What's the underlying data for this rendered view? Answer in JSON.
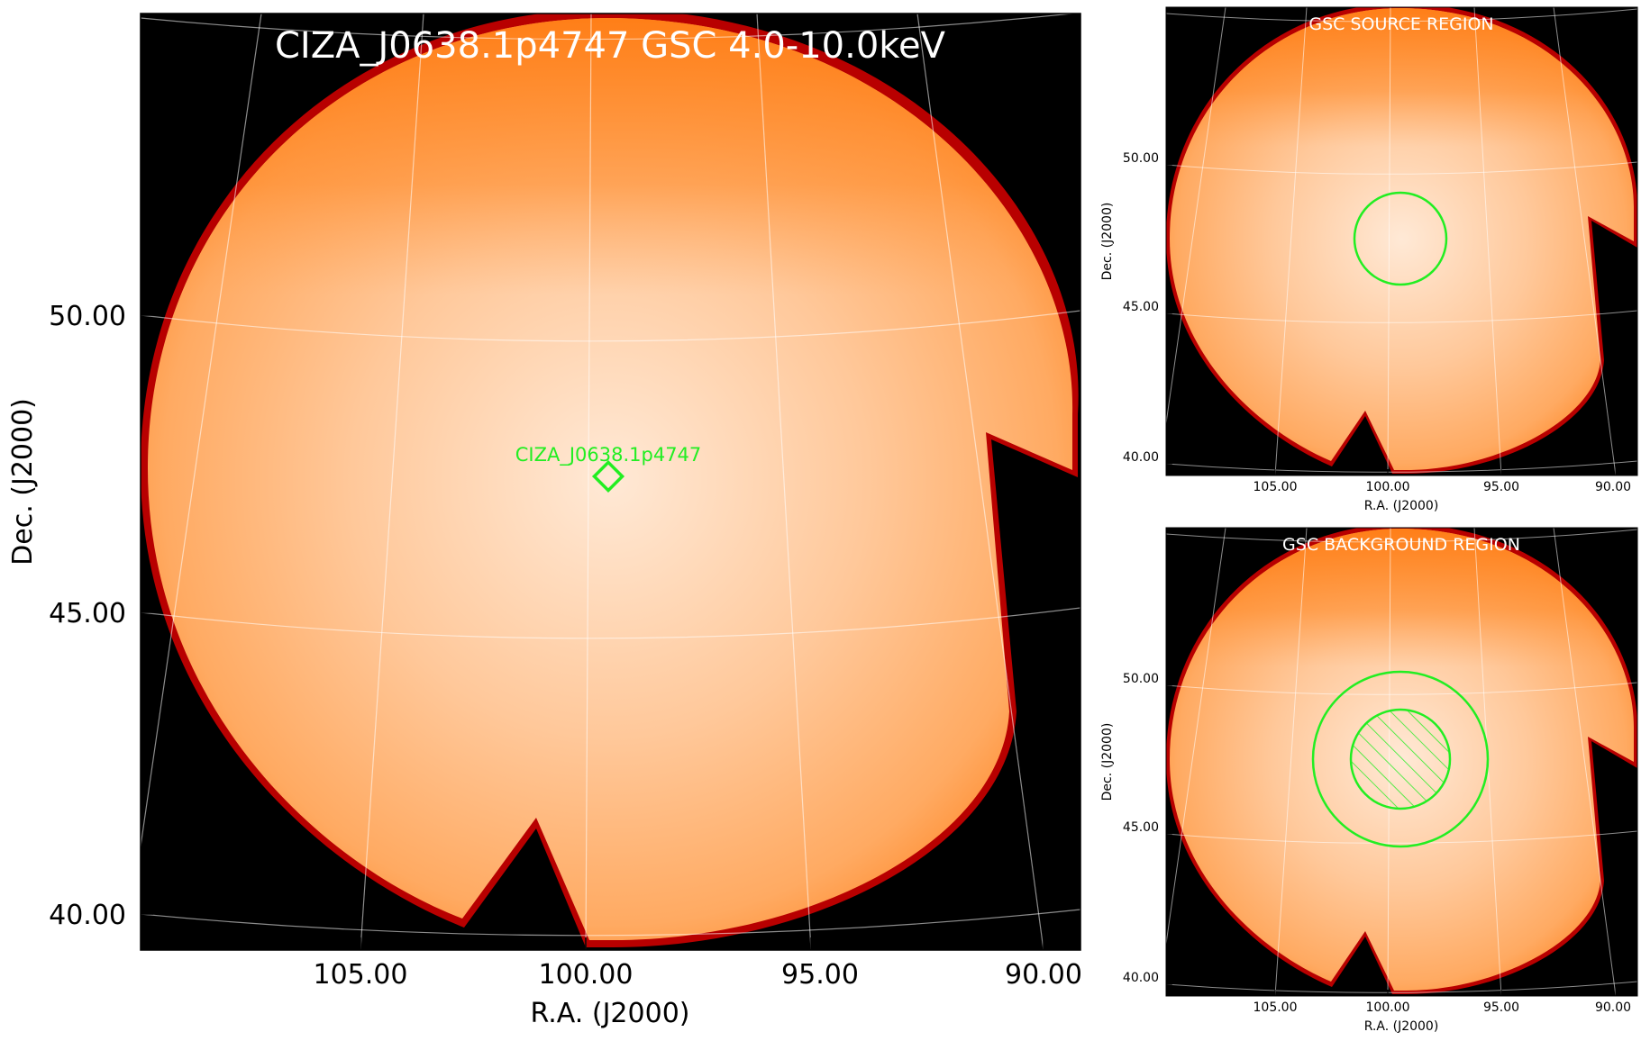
{
  "main_panel": {
    "title": "CIZA_J0638.1p4747 GSC 4.0-10.0keV",
    "source_label": "CIZA_J0638.1p4747",
    "xlabel": "R.A. (J2000)",
    "ylabel": "Dec. (J2000)",
    "x_ticks": [
      "105.00",
      "100.00",
      "95.00",
      "90.00"
    ],
    "y_ticks": [
      "50.00",
      "45.00",
      "40.00"
    ]
  },
  "source_panel": {
    "title": "GSC SOURCE REGION",
    "xlabel": "R.A. (J2000)",
    "ylabel": "Dec. (J2000)",
    "x_ticks": [
      "105.00",
      "100.00",
      "95.00",
      "90.00"
    ],
    "y_ticks": [
      "50.00",
      "45.00",
      "40.00"
    ]
  },
  "background_panel": {
    "title": "GSC BACKGROUND REGION",
    "xlabel": "R.A. (J2000)",
    "ylabel": "Dec. (J2000)",
    "x_ticks": [
      "105.00",
      "100.00",
      "95.00",
      "90.00"
    ],
    "y_ticks": [
      "50.00",
      "45.00",
      "40.00"
    ]
  },
  "colors": {
    "sky_bright": "#ffe6d0",
    "sky_mid": "#ffb270",
    "sky_edge": "#ff7a10",
    "sky_rim": "#b80000",
    "frame_bg": "#000000",
    "region": "#22ee22"
  }
}
